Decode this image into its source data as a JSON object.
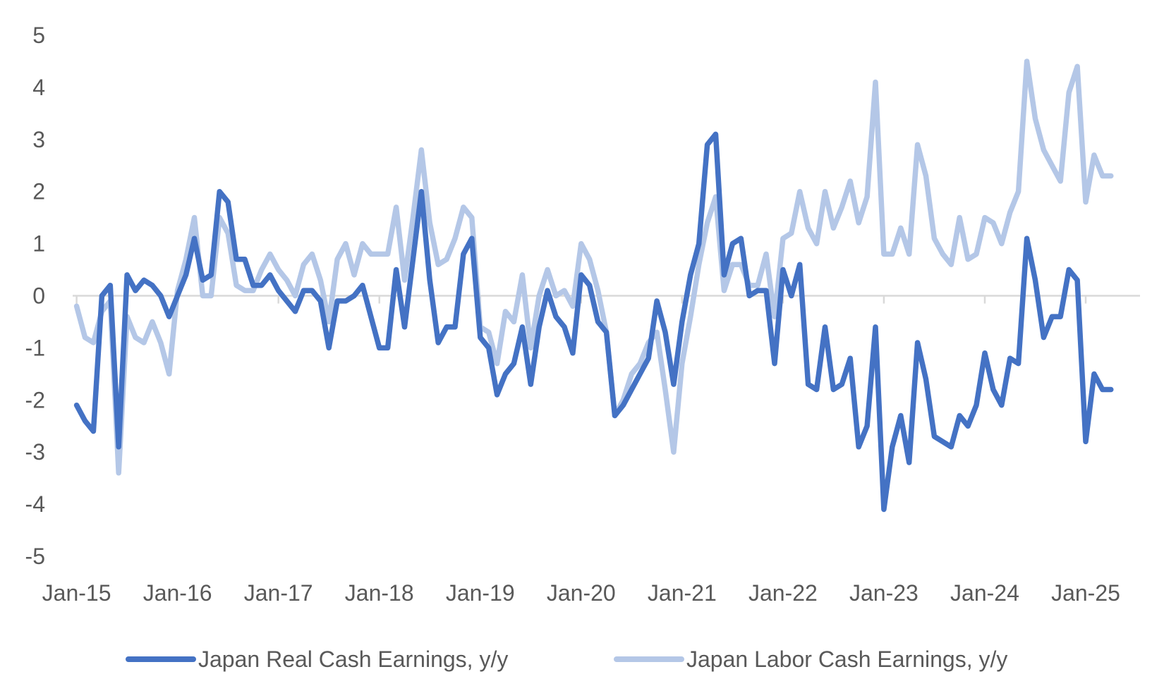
{
  "chart_data": {
    "type": "line",
    "title": "",
    "xlabel": "",
    "ylabel": "",
    "ylim": [
      -5,
      5
    ],
    "yticks": [
      5,
      4,
      3,
      2,
      1,
      0,
      -1,
      -2,
      -3,
      -4,
      -5
    ],
    "xtick_labels": [
      "Jan-15",
      "Jan-16",
      "Jan-17",
      "Jan-18",
      "Jan-19",
      "Jan-20",
      "Jan-21",
      "Jan-22",
      "Jan-23",
      "Jan-24",
      "Jan-25"
    ],
    "grid": false,
    "legend_position": "bottom",
    "x": [
      "Jan-15",
      "Feb-15",
      "Mar-15",
      "Apr-15",
      "May-15",
      "Jun-15",
      "Jul-15",
      "Aug-15",
      "Sep-15",
      "Oct-15",
      "Nov-15",
      "Dec-15",
      "Jan-16",
      "Feb-16",
      "Mar-16",
      "Apr-16",
      "May-16",
      "Jun-16",
      "Jul-16",
      "Aug-16",
      "Sep-16",
      "Oct-16",
      "Nov-16",
      "Dec-16",
      "Jan-17",
      "Feb-17",
      "Mar-17",
      "Apr-17",
      "May-17",
      "Jun-17",
      "Jul-17",
      "Aug-17",
      "Sep-17",
      "Oct-17",
      "Nov-17",
      "Dec-17",
      "Jan-18",
      "Feb-18",
      "Mar-18",
      "Apr-18",
      "May-18",
      "Jun-18",
      "Jul-18",
      "Aug-18",
      "Sep-18",
      "Oct-18",
      "Nov-18",
      "Dec-18",
      "Jan-19",
      "Feb-19",
      "Mar-19",
      "Apr-19",
      "May-19",
      "Jun-19",
      "Jul-19",
      "Aug-19",
      "Sep-19",
      "Oct-19",
      "Nov-19",
      "Dec-19",
      "Jan-20",
      "Feb-20",
      "Mar-20",
      "Apr-20",
      "May-20",
      "Jun-20",
      "Jul-20",
      "Aug-20",
      "Sep-20",
      "Oct-20",
      "Nov-20",
      "Dec-20",
      "Jan-21",
      "Feb-21",
      "Mar-21",
      "Apr-21",
      "May-21",
      "Jun-21",
      "Jul-21",
      "Aug-21",
      "Sep-21",
      "Oct-21",
      "Nov-21",
      "Dec-21",
      "Jan-22",
      "Feb-22",
      "Mar-22",
      "Apr-22",
      "May-22",
      "Jun-22",
      "Jul-22",
      "Aug-22",
      "Sep-22",
      "Oct-22",
      "Nov-22",
      "Dec-22",
      "Jan-23",
      "Feb-23",
      "Mar-23",
      "Apr-23",
      "May-23",
      "Jun-23",
      "Jul-23",
      "Aug-23",
      "Sep-23",
      "Oct-23",
      "Nov-23",
      "Dec-23",
      "Jan-24",
      "Feb-24",
      "Mar-24",
      "Apr-24",
      "May-24",
      "Jun-24",
      "Jul-24",
      "Aug-24",
      "Sep-24",
      "Oct-24",
      "Nov-24",
      "Dec-24",
      "Jan-25",
      "Feb-25",
      "Mar-25",
      "Apr-25"
    ],
    "series": [
      {
        "name": "Japan Real Cash Earnings, y/y",
        "color": "#4472C4",
        "values": [
          -2.1,
          -2.4,
          -2.6,
          0.0,
          0.2,
          -2.9,
          0.4,
          0.1,
          0.3,
          0.2,
          0.0,
          -0.4,
          0.0,
          0.4,
          1.1,
          0.3,
          0.4,
          2.0,
          1.8,
          0.7,
          0.7,
          0.2,
          0.2,
          0.4,
          0.1,
          -0.1,
          -0.3,
          0.1,
          0.1,
          -0.1,
          -1.0,
          -0.1,
          -0.1,
          0.0,
          0.2,
          -0.4,
          -1.0,
          -1.0,
          0.5,
          -0.6,
          0.7,
          2.0,
          0.3,
          -0.9,
          -0.6,
          -0.6,
          0.8,
          1.1,
          -0.8,
          -1.0,
          -1.9,
          -1.5,
          -1.3,
          -0.6,
          -1.7,
          -0.6,
          0.1,
          -0.4,
          -0.6,
          -1.1,
          0.4,
          0.2,
          -0.5,
          -0.7,
          -2.3,
          -2.1,
          -1.8,
          -1.5,
          -1.2,
          -0.1,
          -0.7,
          -1.7,
          -0.5,
          0.4,
          1.0,
          2.9,
          3.1,
          0.4,
          1.0,
          1.1,
          0.0,
          0.1,
          0.1,
          -1.3,
          0.5,
          0.0,
          0.6,
          -1.7,
          -1.8,
          -0.6,
          -1.8,
          -1.7,
          -1.2,
          -2.9,
          -2.5,
          -0.6,
          -4.1,
          -2.9,
          -2.3,
          -3.2,
          -0.9,
          -1.6,
          -2.7,
          -2.8,
          -2.9,
          -2.3,
          -2.5,
          -2.1,
          -1.1,
          -1.8,
          -2.1,
          -1.2,
          -1.3,
          1.1,
          0.3,
          -0.8,
          -0.4,
          -0.4,
          0.5,
          0.3,
          -2.8,
          -1.5,
          -1.8,
          -1.8
        ]
      },
      {
        "name": "Japan Labor Cash Earnings, y/y",
        "color": "#B4C7E7",
        "values": [
          -0.2,
          -0.8,
          -0.9,
          -0.3,
          -0.1,
          -3.4,
          -0.4,
          -0.8,
          -0.9,
          -0.5,
          -0.9,
          -1.5,
          0.1,
          0.7,
          1.5,
          0.0,
          0.0,
          1.5,
          1.2,
          0.2,
          0.1,
          0.1,
          0.5,
          0.8,
          0.5,
          0.3,
          0.0,
          0.6,
          0.8,
          0.3,
          -0.5,
          0.7,
          1.0,
          0.4,
          1.0,
          0.8,
          0.8,
          0.8,
          1.7,
          0.3,
          1.5,
          2.8,
          1.4,
          0.6,
          0.7,
          1.1,
          1.7,
          1.5,
          -0.6,
          -0.7,
          -1.3,
          -0.3,
          -0.5,
          0.4,
          -1.0,
          0.0,
          0.5,
          0.0,
          0.1,
          -0.2,
          1.0,
          0.7,
          0.1,
          -0.7,
          -2.3,
          -2.0,
          -1.5,
          -1.3,
          -0.9,
          -0.7,
          -1.8,
          -3.0,
          -1.3,
          -0.4,
          0.6,
          1.4,
          1.9,
          0.1,
          0.6,
          0.6,
          0.2,
          0.2,
          0.8,
          -0.4,
          1.1,
          1.2,
          2.0,
          1.3,
          1.0,
          2.0,
          1.3,
          1.7,
          2.2,
          1.4,
          1.9,
          4.1,
          0.8,
          0.8,
          1.3,
          0.8,
          2.9,
          2.3,
          1.1,
          0.8,
          0.6,
          1.5,
          0.7,
          0.8,
          1.5,
          1.4,
          1.0,
          1.6,
          2.0,
          4.5,
          3.4,
          2.8,
          2.5,
          2.2,
          3.9,
          4.4,
          1.8,
          2.7,
          2.3,
          2.3
        ]
      }
    ]
  },
  "axis_color": "#D9D9D9",
  "text_color": "#595959"
}
